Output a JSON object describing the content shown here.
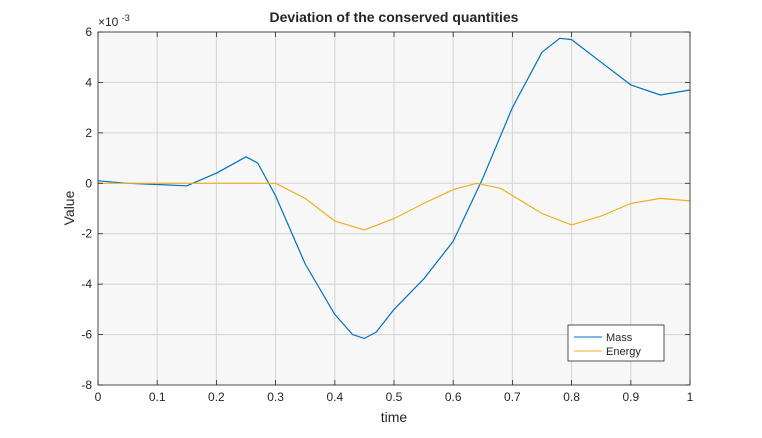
{
  "chart_data": {
    "type": "line",
    "title": "Deviation of the conserved quantities",
    "xlabel": "time",
    "ylabel": "Value",
    "y_multiplier_label": "×10",
    "y_multiplier_exponent": "-3",
    "xlim": [
      0,
      1
    ],
    "ylim": [
      -8,
      6
    ],
    "x_ticks": [
      "0",
      "0.1",
      "0.2",
      "0.3",
      "0.4",
      "0.5",
      "0.6",
      "0.7",
      "0.8",
      "0.9",
      "1"
    ],
    "y_ticks": [
      "6",
      "4",
      "2",
      "0",
      "-2",
      "-4",
      "-6",
      "-8"
    ],
    "grid": true,
    "legend_position": "bottom-right",
    "series": [
      {
        "name": "Mass",
        "color": "#0072BD",
        "points": [
          [
            0.0,
            0.1
          ],
          [
            0.05,
            0.0
          ],
          [
            0.1,
            -0.05
          ],
          [
            0.15,
            -0.1
          ],
          [
            0.2,
            0.4
          ],
          [
            0.25,
            1.05
          ],
          [
            0.27,
            0.8
          ],
          [
            0.3,
            -0.5
          ],
          [
            0.35,
            -3.2
          ],
          [
            0.4,
            -5.2
          ],
          [
            0.43,
            -6.0
          ],
          [
            0.45,
            -6.15
          ],
          [
            0.47,
            -5.9
          ],
          [
            0.5,
            -5.0
          ],
          [
            0.55,
            -3.8
          ],
          [
            0.6,
            -2.3
          ],
          [
            0.65,
            0.2
          ],
          [
            0.7,
            3.0
          ],
          [
            0.75,
            5.2
          ],
          [
            0.78,
            5.75
          ],
          [
            0.8,
            5.7
          ],
          [
            0.85,
            4.8
          ],
          [
            0.9,
            3.9
          ],
          [
            0.95,
            3.5
          ],
          [
            1.0,
            3.7
          ]
        ]
      },
      {
        "name": "Energy",
        "color": "#EDB120",
        "points": [
          [
            0.0,
            0.0
          ],
          [
            0.1,
            0.0
          ],
          [
            0.2,
            0.0
          ],
          [
            0.3,
            0.0
          ],
          [
            0.35,
            -0.6
          ],
          [
            0.4,
            -1.5
          ],
          [
            0.45,
            -1.85
          ],
          [
            0.5,
            -1.4
          ],
          [
            0.55,
            -0.8
          ],
          [
            0.6,
            -0.25
          ],
          [
            0.64,
            0.0
          ],
          [
            0.68,
            -0.2
          ],
          [
            0.75,
            -1.2
          ],
          [
            0.8,
            -1.65
          ],
          [
            0.85,
            -1.3
          ],
          [
            0.9,
            -0.8
          ],
          [
            0.95,
            -0.6
          ],
          [
            1.0,
            -0.7
          ]
        ]
      }
    ]
  }
}
